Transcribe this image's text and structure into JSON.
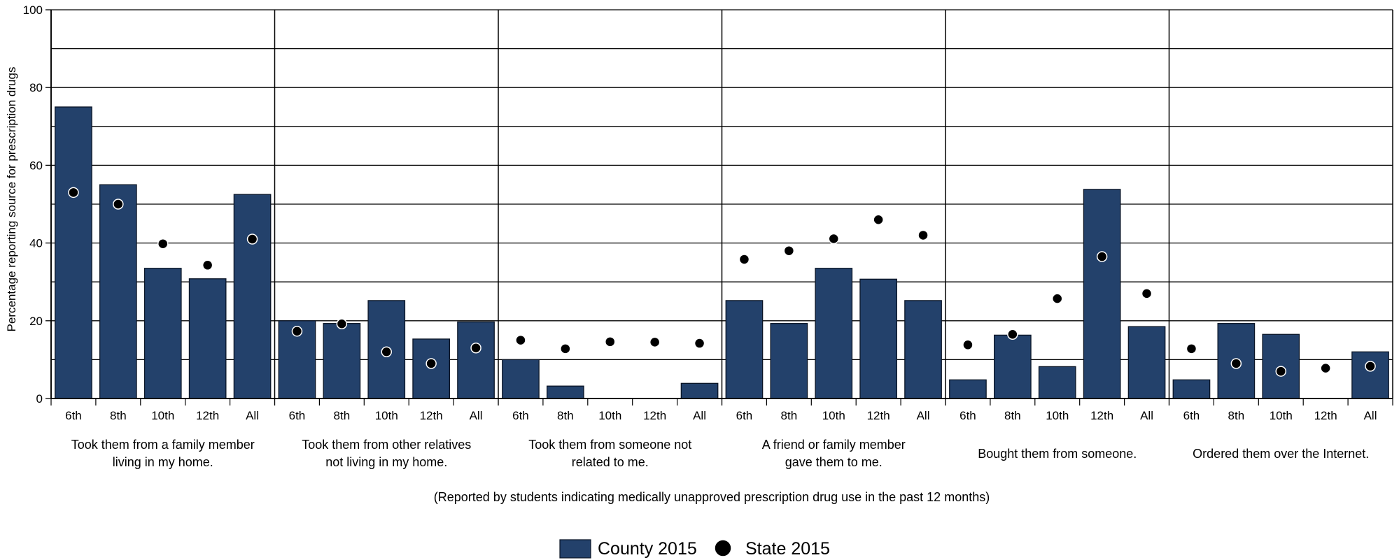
{
  "chart_data": {
    "type": "bar",
    "ylabel": "Percentage reporting source for prescription drugs",
    "ylim": [
      0,
      100
    ],
    "yticks": [
      "0",
      "20",
      "40",
      "60",
      "80",
      "100"
    ],
    "grid": true,
    "note": "(Reported by students indicating medically unapproved prescription drug use  in the past 12 months)",
    "legend": {
      "placement": "bottom-center",
      "bar_label": "County 2015",
      "dot_label": "State 2015"
    },
    "colors": {
      "bar": "#23416b",
      "bar_edge": "#0a1526",
      "dot": "#000000",
      "dot_edge": "#ffffff",
      "grid": "#000000"
    },
    "categories": [
      "6th",
      "8th",
      "10th",
      "12th",
      "All"
    ],
    "groups": [
      {
        "label_lines": [
          "Took them from a family member",
          "living in my home."
        ],
        "county": [
          75,
          55,
          33.5,
          30.8,
          52.5
        ],
        "state": [
          53,
          50,
          39.8,
          34.3,
          41
        ]
      },
      {
        "label_lines": [
          "Took them from other relatives",
          "not living in my home."
        ],
        "county": [
          20,
          19.3,
          25.2,
          15.3,
          19.7
        ],
        "state": [
          17.3,
          19.2,
          12,
          9,
          13
        ]
      },
      {
        "label_lines": [
          "Took them from someone not",
          "related to me."
        ],
        "county": [
          10,
          3.2,
          0,
          0,
          3.9
        ],
        "state": [
          15,
          12.8,
          14.6,
          14.5,
          14.2
        ]
      },
      {
        "label_lines": [
          "A friend or family member",
          "gave them to me."
        ],
        "county": [
          25.2,
          19.3,
          33.5,
          30.7,
          25.2
        ],
        "state": [
          35.8,
          38,
          41.1,
          46,
          42
        ]
      },
      {
        "label_lines": [
          "Bought them from someone."
        ],
        "county": [
          4.8,
          16.3,
          8.2,
          53.8,
          18.5
        ],
        "state": [
          13.8,
          16.5,
          25.7,
          36.5,
          27
        ]
      },
      {
        "label_lines": [
          "Ordered them over the Internet."
        ],
        "county": [
          4.8,
          19.3,
          16.5,
          0,
          12
        ],
        "state": [
          12.8,
          9,
          7,
          7.8,
          8.3
        ]
      }
    ]
  }
}
